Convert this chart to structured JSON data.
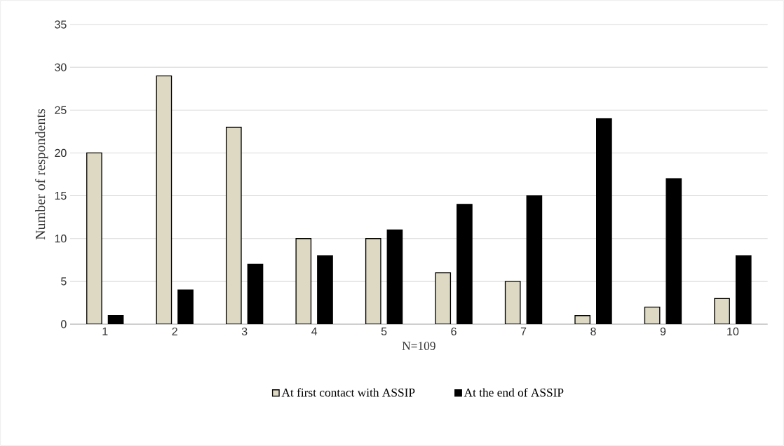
{
  "chart_data": {
    "type": "bar",
    "xlabel": "N=109",
    "ylabel": "Number of respondents",
    "categories": [
      "1",
      "2",
      "3",
      "4",
      "5",
      "6",
      "7",
      "8",
      "9",
      "10"
    ],
    "series": [
      {
        "name": "At first contact with ASSIP",
        "color": "#ddd9c3",
        "values": [
          20,
          29,
          23,
          10,
          10,
          6,
          5,
          1,
          2,
          3
        ]
      },
      {
        "name": "At the end of ASSIP",
        "color": "#000000",
        "values": [
          1,
          4,
          7,
          8,
          11,
          14,
          15,
          24,
          17,
          8
        ]
      }
    ],
    "ylim": [
      0,
      35
    ],
    "yticks": [
      0,
      5,
      10,
      15,
      20,
      25,
      30,
      35
    ],
    "grid": "y",
    "legend": "bottom"
  }
}
